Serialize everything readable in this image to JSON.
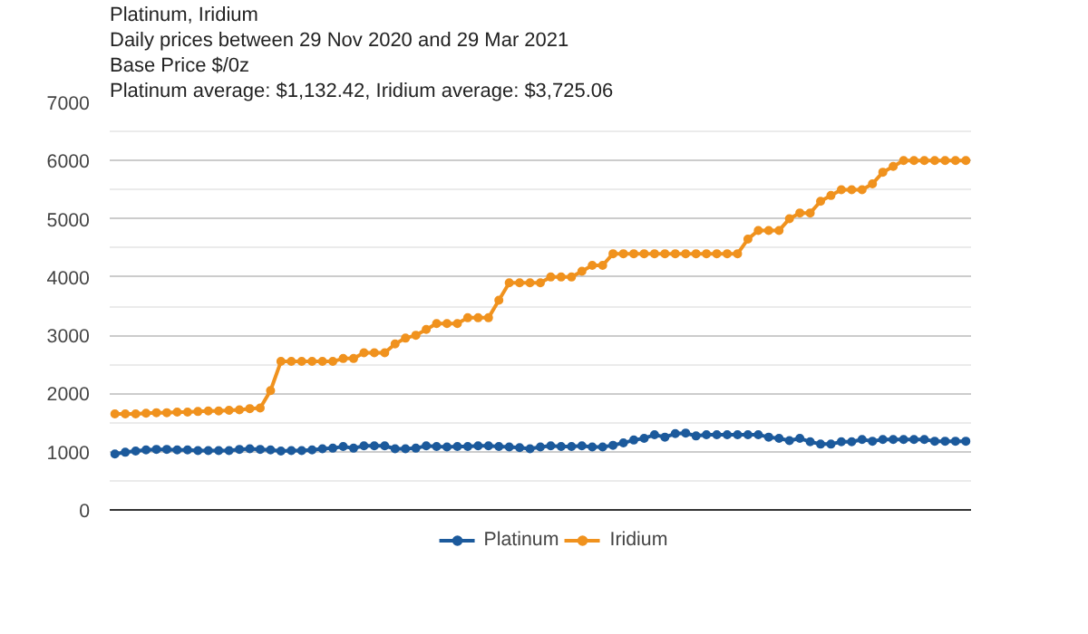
{
  "chart_data": {
    "type": "line",
    "title": "Platinum, Iridium",
    "subtitle": "Daily prices between 29 Nov 2020 and 29 Mar 2021",
    "annotations": [
      "Base Price $/0z",
      "Platinum average: $1,132.42, Iridium average: $3,725.06"
    ],
    "categories": [
      null,
      null,
      null,
      null,
      null,
      null,
      null,
      null,
      null,
      null,
      null,
      null,
      null,
      null,
      null,
      null,
      null,
      null,
      null,
      null,
      null,
      null,
      null,
      null,
      null,
      null,
      null,
      null,
      null,
      null,
      null,
      null,
      null,
      null,
      null,
      null,
      null,
      null,
      null,
      null,
      null,
      null,
      null,
      null,
      null,
      null,
      null,
      null,
      null,
      null,
      null,
      null,
      null,
      null,
      null,
      null,
      null,
      null,
      null,
      null,
      null,
      null,
      null,
      null,
      null,
      null,
      null,
      null,
      null,
      null,
      null,
      null,
      null,
      null,
      null,
      null,
      null,
      null,
      null,
      null,
      null,
      null,
      null
    ],
    "series": [
      {
        "name": "Platinum",
        "color": "#1c5a9c",
        "values": [
          960,
          990,
          1010,
          1030,
          1040,
          1040,
          1030,
          1030,
          1020,
          1020,
          1020,
          1020,
          1040,
          1050,
          1040,
          1030,
          1010,
          1020,
          1020,
          1030,
          1050,
          1060,
          1090,
          1060,
          1100,
          1100,
          1100,
          1050,
          1050,
          1060,
          1100,
          1090,
          1080,
          1090,
          1090,
          1100,
          1100,
          1090,
          1080,
          1070,
          1050,
          1080,
          1100,
          1090,
          1090,
          1100,
          1080,
          1080,
          1110,
          1150,
          1200,
          1230,
          1290,
          1250,
          1310,
          1320,
          1270,
          1290,
          1290,
          1290,
          1290,
          1290,
          1290,
          1250,
          1230,
          1190,
          1230,
          1170,
          1130,
          1130,
          1170,
          1170,
          1210,
          1180,
          1210,
          1210,
          1210,
          1210,
          1210,
          1180,
          1180,
          1180,
          1180
        ]
      },
      {
        "name": "Iridium",
        "color": "#f0921e",
        "values": [
          1650,
          1650,
          1650,
          1660,
          1670,
          1670,
          1680,
          1680,
          1690,
          1700,
          1700,
          1710,
          1720,
          1740,
          1750,
          2050,
          2550,
          2550,
          2550,
          2550,
          2550,
          2550,
          2600,
          2600,
          2700,
          2700,
          2700,
          2850,
          2950,
          3000,
          3100,
          3200,
          3200,
          3200,
          3300,
          3300,
          3300,
          3600,
          3900,
          3900,
          3900,
          3900,
          4000,
          4000,
          4000,
          4100,
          4200,
          4200,
          4400,
          4400,
          4400,
          4400,
          4400,
          4400,
          4400,
          4400,
          4400,
          4400,
          4400,
          4400,
          4400,
          4650,
          4800,
          4800,
          4800,
          5000,
          5100,
          5100,
          5300,
          5400,
          5500,
          5500,
          5500,
          5600,
          5800,
          5900,
          6000,
          6000,
          6000,
          6000,
          6000,
          6000,
          6000
        ]
      }
    ],
    "ylim": [
      0,
      7000
    ],
    "yticks": [
      0,
      1000,
      2000,
      3000,
      4000,
      5000,
      6000,
      7000
    ],
    "grid": "y",
    "legend": "bottom",
    "marker": "circle",
    "line_style": "solid"
  }
}
